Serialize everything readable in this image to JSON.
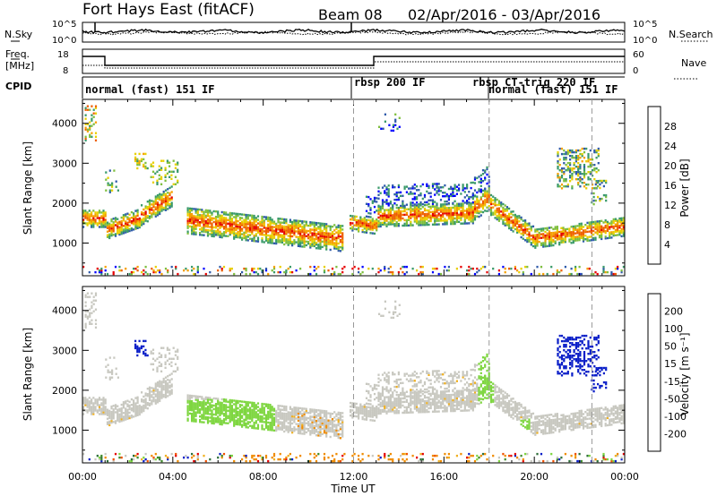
{
  "header": {
    "station": "Fort Hays East (fitACF)",
    "beam": "Beam 08",
    "date_range": "02/Apr/2016 - 03/Apr/2016"
  },
  "noise_panel": {
    "left_label": "N.Sky",
    "right_label": "N.Search",
    "yticks_left": [
      "10^5",
      "10^0"
    ],
    "yticks_right": [
      "10^5",
      "10^0"
    ]
  },
  "freq_panel": {
    "left_label_1": "Freq.",
    "left_label_2": "[MHz]",
    "right_label": "Nave",
    "yticks_left": [
      "18",
      "8"
    ],
    "yticks_right": [
      "60",
      "0"
    ]
  },
  "cpid_panel": {
    "label": "CPID",
    "segments": [
      {
        "label": "normal (fast) 151 IF",
        "start_hour": 0
      },
      {
        "label": "rbsp 200 IF",
        "start_hour": 12
      },
      {
        "label": "rbsp CT-trig 220 IF",
        "start_hour": 18
      },
      {
        "label": "normal (fast) 151 IF",
        "start_hour": 18.1
      }
    ]
  },
  "chart_data": [
    {
      "type": "heatmap",
      "name": "power",
      "ylabel": "Slant Range [km]",
      "xlabel": "",
      "x_range_hours": [
        0,
        24
      ],
      "ylim": [
        180,
        4600
      ],
      "yticks": [
        1000,
        2000,
        3000,
        4000
      ],
      "colorbar": {
        "label": "Power [dB]",
        "ticks": [
          "4",
          "8",
          "12",
          "16",
          "20",
          "24",
          "28"
        ],
        "colors": [
          "#0000ff",
          "#2f5aaa",
          "#3a9a6a",
          "#7fbf3f",
          "#e8d000",
          "#f5a000",
          "#ee6000",
          "#e60000"
        ]
      }
    },
    {
      "type": "heatmap",
      "name": "velocity",
      "ylabel": "Slant Range [km]",
      "xlabel": "Time UT",
      "x_range_hours": [
        0,
        24
      ],
      "ylim": [
        180,
        4600
      ],
      "yticks": [
        1000,
        2000,
        3000,
        4000
      ],
      "xticks": [
        "00:00",
        "04:00",
        "08:00",
        "12:00",
        "16:00",
        "20:00",
        "00:00"
      ],
      "colorbar": {
        "label": "Velocity [m s⁻¹]",
        "ticks": [
          "200",
          "100",
          "50",
          "15",
          "-15",
          "-50",
          "-100",
          "-200"
        ],
        "colors": [
          "#0a1fc8",
          "#2e6f3a",
          "#3f8a2a",
          "#7ed640",
          "#c8c8c0",
          "#f0b020",
          "#f08c00",
          "#f05000",
          "#e60000"
        ]
      }
    }
  ]
}
